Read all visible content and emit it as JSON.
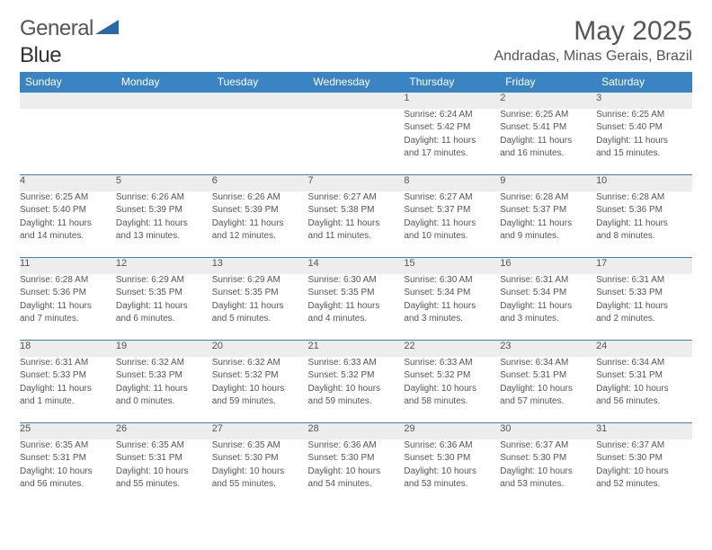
{
  "logo": {
    "word1": "General",
    "word2": "Blue"
  },
  "title": "May 2025",
  "subtitle": "Andradas, Minas Gerais, Brazil",
  "colors": {
    "header_bg": "#3b84c4",
    "header_text": "#ffffff",
    "daynum_bg": "#ededed",
    "border": "#3b84c4",
    "text": "#555555",
    "logo_triangle": "#2b6aa8"
  },
  "fonts": {
    "title_size": 30,
    "subtitle_size": 16,
    "header_size": 12,
    "daynum_size": 11,
    "detail_size": 10
  },
  "dayNames": [
    "Sunday",
    "Monday",
    "Tuesday",
    "Wednesday",
    "Thursday",
    "Friday",
    "Saturday"
  ],
  "weeks": [
    [
      null,
      null,
      null,
      null,
      {
        "n": "1",
        "sr": "6:24 AM",
        "ss": "5:42 PM",
        "dh": "11",
        "dm": "17"
      },
      {
        "n": "2",
        "sr": "6:25 AM",
        "ss": "5:41 PM",
        "dh": "11",
        "dm": "16"
      },
      {
        "n": "3",
        "sr": "6:25 AM",
        "ss": "5:40 PM",
        "dh": "11",
        "dm": "15"
      }
    ],
    [
      {
        "n": "4",
        "sr": "6:25 AM",
        "ss": "5:40 PM",
        "dh": "11",
        "dm": "14"
      },
      {
        "n": "5",
        "sr": "6:26 AM",
        "ss": "5:39 PM",
        "dh": "11",
        "dm": "13"
      },
      {
        "n": "6",
        "sr": "6:26 AM",
        "ss": "5:39 PM",
        "dh": "11",
        "dm": "12"
      },
      {
        "n": "7",
        "sr": "6:27 AM",
        "ss": "5:38 PM",
        "dh": "11",
        "dm": "11"
      },
      {
        "n": "8",
        "sr": "6:27 AM",
        "ss": "5:37 PM",
        "dh": "11",
        "dm": "10"
      },
      {
        "n": "9",
        "sr": "6:28 AM",
        "ss": "5:37 PM",
        "dh": "11",
        "dm": "9"
      },
      {
        "n": "10",
        "sr": "6:28 AM",
        "ss": "5:36 PM",
        "dh": "11",
        "dm": "8"
      }
    ],
    [
      {
        "n": "11",
        "sr": "6:28 AM",
        "ss": "5:36 PM",
        "dh": "11",
        "dm": "7"
      },
      {
        "n": "12",
        "sr": "6:29 AM",
        "ss": "5:35 PM",
        "dh": "11",
        "dm": "6"
      },
      {
        "n": "13",
        "sr": "6:29 AM",
        "ss": "5:35 PM",
        "dh": "11",
        "dm": "5"
      },
      {
        "n": "14",
        "sr": "6:30 AM",
        "ss": "5:35 PM",
        "dh": "11",
        "dm": "4"
      },
      {
        "n": "15",
        "sr": "6:30 AM",
        "ss": "5:34 PM",
        "dh": "11",
        "dm": "3"
      },
      {
        "n": "16",
        "sr": "6:31 AM",
        "ss": "5:34 PM",
        "dh": "11",
        "dm": "3"
      },
      {
        "n": "17",
        "sr": "6:31 AM",
        "ss": "5:33 PM",
        "dh": "11",
        "dm": "2"
      }
    ],
    [
      {
        "n": "18",
        "sr": "6:31 AM",
        "ss": "5:33 PM",
        "dh": "11",
        "dm": "1"
      },
      {
        "n": "19",
        "sr": "6:32 AM",
        "ss": "5:33 PM",
        "dh": "11",
        "dm": "0"
      },
      {
        "n": "20",
        "sr": "6:32 AM",
        "ss": "5:32 PM",
        "dh": "10",
        "dm": "59"
      },
      {
        "n": "21",
        "sr": "6:33 AM",
        "ss": "5:32 PM",
        "dh": "10",
        "dm": "59"
      },
      {
        "n": "22",
        "sr": "6:33 AM",
        "ss": "5:32 PM",
        "dh": "10",
        "dm": "58"
      },
      {
        "n": "23",
        "sr": "6:34 AM",
        "ss": "5:31 PM",
        "dh": "10",
        "dm": "57"
      },
      {
        "n": "24",
        "sr": "6:34 AM",
        "ss": "5:31 PM",
        "dh": "10",
        "dm": "56"
      }
    ],
    [
      {
        "n": "25",
        "sr": "6:35 AM",
        "ss": "5:31 PM",
        "dh": "10",
        "dm": "56"
      },
      {
        "n": "26",
        "sr": "6:35 AM",
        "ss": "5:31 PM",
        "dh": "10",
        "dm": "55"
      },
      {
        "n": "27",
        "sr": "6:35 AM",
        "ss": "5:30 PM",
        "dh": "10",
        "dm": "55"
      },
      {
        "n": "28",
        "sr": "6:36 AM",
        "ss": "5:30 PM",
        "dh": "10",
        "dm": "54"
      },
      {
        "n": "29",
        "sr": "6:36 AM",
        "ss": "5:30 PM",
        "dh": "10",
        "dm": "53"
      },
      {
        "n": "30",
        "sr": "6:37 AM",
        "ss": "5:30 PM",
        "dh": "10",
        "dm": "53"
      },
      {
        "n": "31",
        "sr": "6:37 AM",
        "ss": "5:30 PM",
        "dh": "10",
        "dm": "52"
      }
    ]
  ],
  "labels": {
    "sunrise": "Sunrise:",
    "sunset": "Sunset:",
    "daylight": "Daylight:",
    "hours": "hours",
    "and": "and",
    "minute": "minute",
    "minutes": "minutes"
  }
}
